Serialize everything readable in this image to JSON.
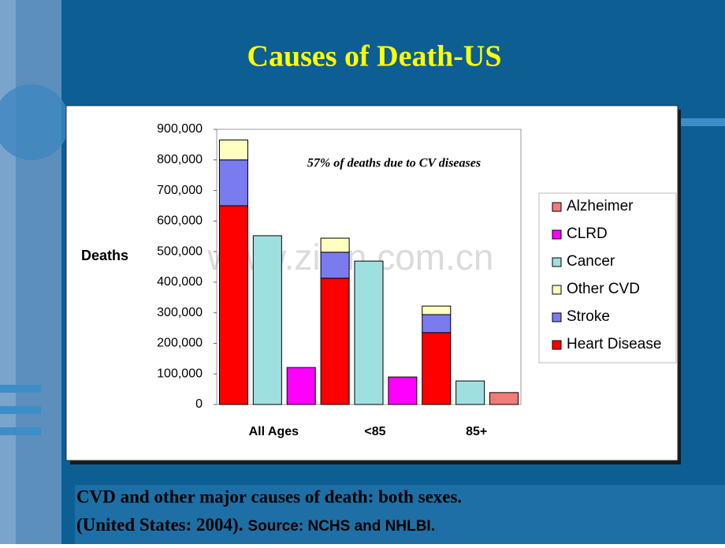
{
  "slide_title": "Causes of Death-US",
  "footer": {
    "line1": "CVD and other major causes of death: both sexes.",
    "line2": "(United States: 2004).",
    "source": "Source: NCHS and NHLBI."
  },
  "watermark": "www.zixin.com.cn",
  "chart_data": {
    "type": "bar",
    "annotation": "57% of deaths due to CV diseases",
    "y_label": "Deaths",
    "categories": [
      "All Ages",
      "<85",
      "85+"
    ],
    "series": [
      {
        "name": "Heart Disease",
        "color": "#ff0000",
        "values": [
          650000,
          413000,
          235000
        ]
      },
      {
        "name": "Stroke",
        "color": "#7b7bf0",
        "values": [
          150000,
          85000,
          59000
        ]
      },
      {
        "name": "Other CVD",
        "color": "#ffffc0",
        "values": [
          65000,
          46000,
          28000
        ]
      },
      {
        "name": "Cancer",
        "color": "#9ee0e0",
        "values": [
          552000,
          469000,
          77000
        ]
      },
      {
        "name": "CLRD",
        "color": "#ff00ff",
        "values": [
          121000,
          90000,
          null
        ]
      },
      {
        "name": "Alzheimer",
        "color": "#f07b7b",
        "values": [
          null,
          null,
          39000
        ]
      }
    ],
    "ylim": [
      0,
      900000
    ],
    "yticks": [
      0,
      {
        "value": 100000,
        "label": "100,000"
      },
      {
        "value": 200000,
        "label": "200,000"
      },
      {
        "value": 300000,
        "label": "300,000"
      },
      {
        "value": 400000,
        "label": "400,000"
      },
      {
        "value": 500000,
        "label": "500,000"
      },
      {
        "value": 600000,
        "label": "600,000"
      },
      {
        "value": 700000,
        "label": "700,000"
      },
      {
        "value": 800000,
        "label": "800,000"
      },
      {
        "value": 900000,
        "label": "900,000"
      }
    ],
    "legend": "right"
  }
}
